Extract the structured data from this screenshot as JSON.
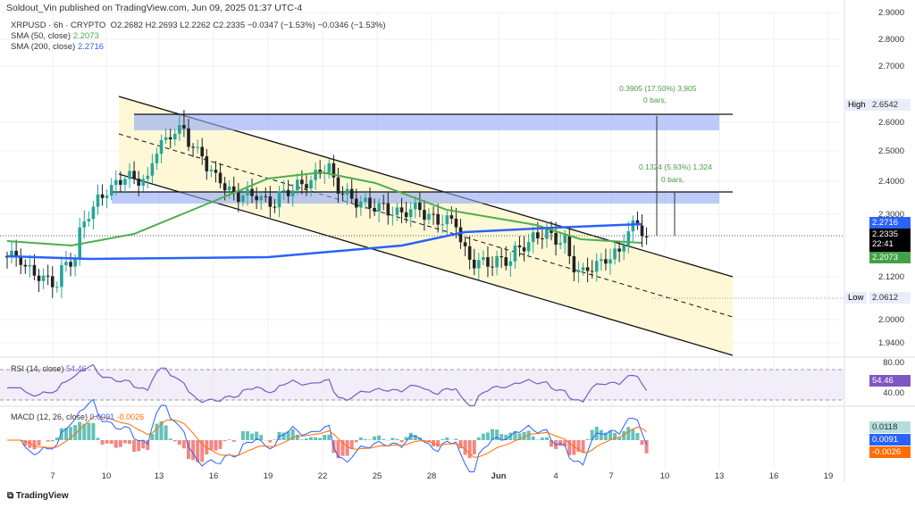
{
  "header": {
    "published": "Soldout_Vin published on TradingView.com, Jun 09, 2025 01:37 UTC-4",
    "symbol": "XRPUSD · 6h · CRYPTO",
    "ohlc": "O2.2682  H2.2693  L2.2262  C2.2335  −0.0347 (−1.53%)  −0.0346 (−1.53%)",
    "sma50_label": "SMA (50, close)",
    "sma50_value": "2.2073",
    "sma200_label": "SMA (200, close)",
    "sma200_value": "2.2716"
  },
  "price_axis": [
    "2.9000",
    "2.8000",
    "2.7000",
    "2.6000",
    "2.5000",
    "2.4000",
    "2.3000",
    "2.1200",
    "2.0000",
    "1.9400"
  ],
  "tags": {
    "high_label": "High",
    "high": "2.6542",
    "low_label": "Low",
    "low": "2.0612",
    "sma200": "2.2716",
    "price": "2.2335",
    "countdown": "22:41",
    "sma50": "2.2073",
    "rsi_80": "80.00",
    "rsi_40": "40.00",
    "rsi": "54.46",
    "macd_hist": "0.0118",
    "macd": "0.0091",
    "signal": "-0.0026"
  },
  "measures": [
    {
      "text": "0.3905 (17.50%) 3,905",
      "bars": "0 bars,"
    },
    {
      "text": "0.1324 (5.93%) 1,324",
      "bars": "0 bars,"
    }
  ],
  "rsi_legend": {
    "label": "RSI (14, close)",
    "value": "54.46"
  },
  "macd_legend": {
    "label": "MACD (12, 26, close)",
    "macd": "0.0091",
    "signal": "-0.0026"
  },
  "time_axis": [
    "7",
    "10",
    "13",
    "16",
    "19",
    "22",
    "25",
    "28",
    "Jun",
    "4",
    "7",
    "10",
    "13",
    "16",
    "19"
  ],
  "footer": "TradingView",
  "colors": {
    "up": "#26a69a",
    "down": "#222222",
    "sma50": "#4caf50",
    "sma200": "#2962ff",
    "zone": "#8fa8f5",
    "channel": "#fff8d6"
  },
  "chart_data": {
    "type": "candlestick",
    "title": "XRPUSD 6h",
    "ylim": [
      1.9,
      2.95
    ],
    "x_start": "May 5",
    "x_unit": "day",
    "daily_close": [
      2.17,
      2.12,
      2.1,
      2.18,
      2.33,
      2.38,
      2.42,
      2.4,
      2.55,
      2.58,
      2.48,
      2.4,
      2.35,
      2.36,
      2.33,
      2.38,
      2.4,
      2.45,
      2.35,
      2.33,
      2.32,
      2.3,
      2.32,
      2.28,
      2.28,
      2.15,
      2.16,
      2.17,
      2.22,
      2.25,
      2.22,
      2.12,
      2.16,
      2.19,
      2.28,
      2.2335
    ],
    "sma50_last": 2.2073,
    "sma200_last": 2.2716,
    "high": 2.6542,
    "low": 2.0612
  }
}
